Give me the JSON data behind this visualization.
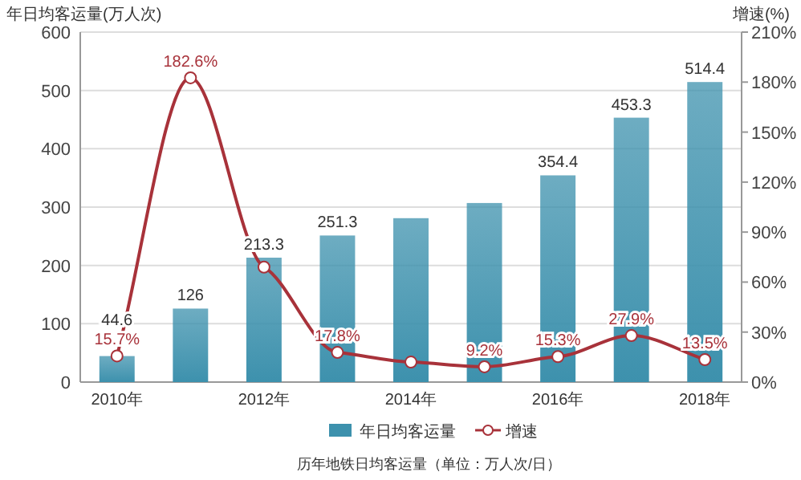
{
  "chart_data": {
    "type": "bar",
    "categories": [
      "2010年",
      null,
      "2012年",
      null,
      "2014年",
      null,
      "2016年",
      null,
      "2018年"
    ],
    "ylabel": "年日均客运量(万人次)",
    "y2label": "增速(%)",
    "series": [
      {
        "name": "年日均客运量",
        "color": "#3d91ad",
        "values": [
          44.6,
          126,
          213.3,
          251.3,
          281,
          307,
          354.4,
          453.3,
          514.4
        ],
        "value_labels": [
          "44.6",
          "126",
          "213.3",
          "251.3",
          null,
          null,
          "354.4",
          "453.3",
          "514.4"
        ]
      },
      {
        "name": "增速",
        "type": "line",
        "axis": "y2",
        "color": "#a8323a",
        "marker": "circle",
        "values": [
          15.7,
          182.6,
          69,
          17.8,
          12.0,
          9.2,
          15.3,
          27.9,
          13.5
        ],
        "value_labels": [
          "15.7%",
          "182.6%",
          null,
          "17.8%",
          null,
          "9.2%",
          "15.3%",
          "27.9%",
          "13.5%"
        ]
      }
    ],
    "ylim": [
      0,
      600
    ],
    "yticks": [
      0,
      100,
      200,
      300,
      400,
      500,
      600
    ],
    "y2lim": [
      0,
      210
    ],
    "y2ticks": [
      {
        "value": 0,
        "label": "0%"
      },
      {
        "value": 30,
        "label": "30%"
      },
      {
        "value": 60,
        "label": "60%"
      },
      {
        "value": 90,
        "label": "90%"
      },
      {
        "value": 120,
        "label": "120%"
      },
      {
        "value": 150,
        "label": "150%"
      },
      {
        "value": 180,
        "label": "180%"
      },
      {
        "value": 210,
        "label": "210%"
      }
    ],
    "grid": "y",
    "legend": "bottom",
    "annotations": [
      "历年地铁日均客运量（单位：万人次/日）"
    ]
  }
}
